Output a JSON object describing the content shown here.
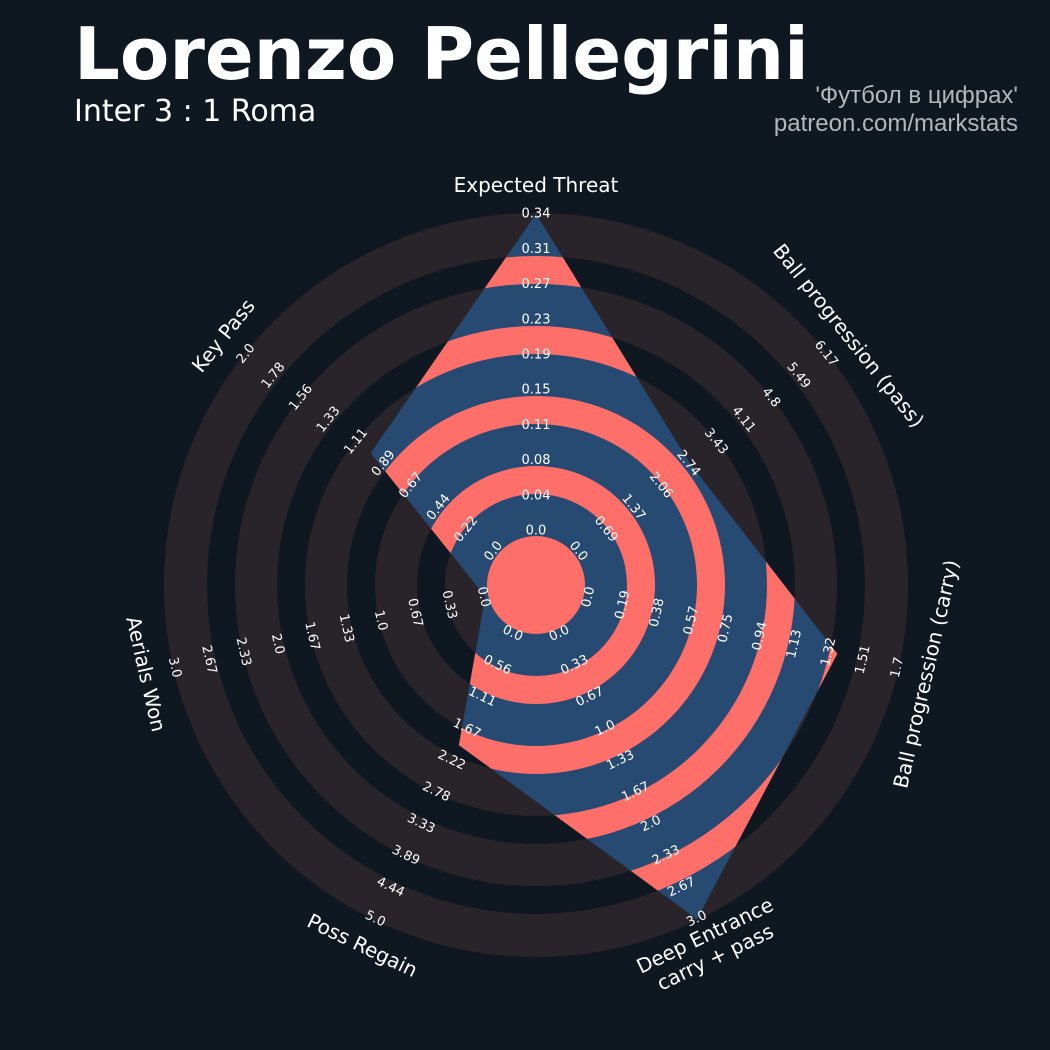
{
  "header": {
    "title": "Lorenzo Pellegrini",
    "subtitle": "Inter 3 : 1 Roma",
    "credit_line1": "'Футбол в цифрах'",
    "credit_line2": "patreon.com/markstats"
  },
  "colors": {
    "background": "#0f1820",
    "ring_band": "#29242a",
    "polygon_fill": "#274a73",
    "polygon_alt": "#ff6f69",
    "text": "#ffffff",
    "credit_text": "#b4b7ba"
  },
  "chart_data": {
    "type": "radar",
    "title": "Lorenzo Pellegrini",
    "subtitle": "Inter 3 : 1 Roma",
    "axes": [
      {
        "label": "Expected Threat",
        "range": [
          0,
          0.34
        ],
        "value": 0.34,
        "ticks": [
          "0.0",
          "0.04",
          "0.08",
          "0.11",
          "0.15",
          "0.19",
          "0.23",
          "0.27",
          "0.31",
          "0.34"
        ]
      },
      {
        "label": "Ball progression (pass)",
        "range": [
          0,
          6.17
        ],
        "value": 2.79,
        "ticks": [
          "0.0",
          "0.69",
          "1.37",
          "2.06",
          "2.74",
          "3.43",
          "4.11",
          "4.8",
          "5.49",
          "6.17"
        ]
      },
      {
        "label": "Ball progression (carry)",
        "range": [
          0,
          1.7
        ],
        "value": 1.37,
        "ticks": [
          "0.0",
          "0.19",
          "0.38",
          "0.57",
          "0.75",
          "0.94",
          "1.13",
          "1.32",
          "1.51",
          "1.7"
        ]
      },
      {
        "label": "Deep Entrance\ncarry + pass",
        "range": [
          0,
          3.0
        ],
        "value": 3.0,
        "ticks": [
          "0.0",
          "0.33",
          "0.67",
          "1.0",
          "1.33",
          "1.67",
          "2.0",
          "2.33",
          "2.67",
          "3.0"
        ]
      },
      {
        "label": "Poss Regain",
        "range": [
          0,
          5.0
        ],
        "value": 1.97,
        "ticks": [
          "0.0",
          "0.56",
          "1.11",
          "1.67",
          "2.22",
          "2.78",
          "3.33",
          "3.89",
          "4.44",
          "5.0"
        ]
      },
      {
        "label": "Aerials Won",
        "range": [
          0,
          3.0
        ],
        "value": 0.0,
        "ticks": [
          "0.0",
          "0.33",
          "0.67",
          "1.0",
          "1.33",
          "1.67",
          "2.0",
          "2.33",
          "2.67",
          "3.0"
        ]
      },
      {
        "label": "Key Pass",
        "range": [
          0,
          2.0
        ],
        "value": 1.0,
        "ticks": [
          "0.0",
          "0.22",
          "0.44",
          "0.67",
          "0.89",
          "1.11",
          "1.33",
          "1.56",
          "1.78",
          "2.0"
        ]
      }
    ]
  }
}
